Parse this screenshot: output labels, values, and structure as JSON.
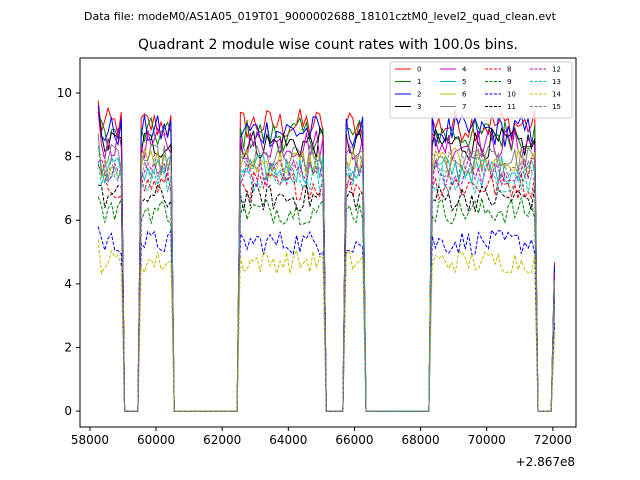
{
  "suptitle": "Data file: modeM0/AS1A05_019T01_9000002688_18101cztM0_level2_quad_clean.evt",
  "chart_data": {
    "type": "line",
    "title": "Quadrant 2 module wise count rates with 100.0s bins.",
    "xlabel": "",
    "ylabel": "",
    "x_offset_label": "+2.867e8",
    "xlim": [
      57700,
      72700
    ],
    "ylim": [
      -0.5,
      11.1
    ],
    "x_ticks": [
      58000,
      60000,
      62000,
      64000,
      66000,
      68000,
      70000,
      72000
    ],
    "x_tick_labels": [
      "58000",
      "60000",
      "62000",
      "64000",
      "66000",
      "68000",
      "70000",
      "72000"
    ],
    "y_ticks": [
      0,
      2,
      4,
      6,
      8,
      10
    ],
    "y_tick_labels": [
      "0",
      "2",
      "4",
      "6",
      "8",
      "10"
    ],
    "grid": false,
    "legend_position": "top-right",
    "segments": [
      {
        "start": 58250,
        "end": 58950
      },
      {
        "start": 59550,
        "end": 60450
      },
      {
        "start": 62550,
        "end": 65050
      },
      {
        "start": 65750,
        "end": 66250
      },
      {
        "start": 68350,
        "end": 71450
      },
      {
        "start": 72050,
        "end": 72050
      }
    ],
    "gaps": [
      {
        "from": 58950,
        "to": 59550,
        "zero_start": 59050,
        "zero_end": 59450
      },
      {
        "from": 60450,
        "to": 62550,
        "zero_start": 60550,
        "zero_end": 62450
      },
      {
        "from": 65050,
        "to": 65750,
        "zero_start": 65150,
        "zero_end": 65650
      },
      {
        "from": 66250,
        "to": 68350,
        "zero_start": 66350,
        "zero_end": 68250
      },
      {
        "from": 71450,
        "to": 72050,
        "zero_start": 71550,
        "zero_end": 71950
      }
    ],
    "series": [
      {
        "name": "0",
        "color": "#ff0000",
        "dash": "solid",
        "mean": 9.0
      },
      {
        "name": "1",
        "color": "#008000",
        "dash": "solid",
        "mean": 8.7
      },
      {
        "name": "2",
        "color": "#0000ff",
        "dash": "solid",
        "mean": 8.8
      },
      {
        "name": "3",
        "color": "#000000",
        "dash": "solid",
        "mean": 8.4
      },
      {
        "name": "4",
        "color": "#bf00bf",
        "dash": "solid",
        "mean": 8.4
      },
      {
        "name": "5",
        "color": "#00bfbf",
        "dash": "solid",
        "mean": 7.6
      },
      {
        "name": "6",
        "color": "#bfbf00",
        "dash": "solid",
        "mean": 7.8
      },
      {
        "name": "7",
        "color": "#808080",
        "dash": "solid",
        "mean": 7.9
      },
      {
        "name": "8",
        "color": "#ff0000",
        "dash": "dashed",
        "mean": 7.1
      },
      {
        "name": "9",
        "color": "#008000",
        "dash": "dashed",
        "mean": 6.3
      },
      {
        "name": "10",
        "color": "#0000ff",
        "dash": "dashed",
        "mean": 5.3
      },
      {
        "name": "11",
        "color": "#000000",
        "dash": "dashed",
        "mean": 6.7
      },
      {
        "name": "12",
        "color": "#bf00bf",
        "dash": "dashed",
        "mean": 7.5
      },
      {
        "name": "13",
        "color": "#00bfbf",
        "dash": "dashed",
        "mean": 7.3
      },
      {
        "name": "14",
        "color": "#bfbf00",
        "dash": "dashed",
        "mean": 4.7
      },
      {
        "name": "15",
        "color": "#808080",
        "dash": "dashed",
        "mean": 7.7
      }
    ],
    "noise_amplitude": 0.35,
    "bin_width_s": 100
  }
}
